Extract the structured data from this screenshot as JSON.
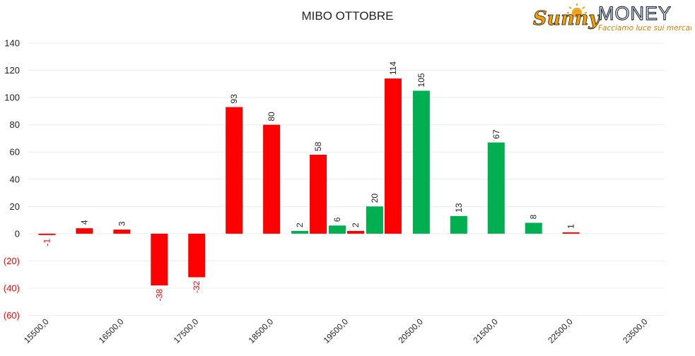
{
  "logo": {
    "brand_script": "Sunny",
    "brand_caps": "MONEY",
    "tagline": "Facciamo luce sui mercati"
  },
  "chart_data": {
    "type": "bar",
    "title": "MIBO OTTOBRE",
    "xlabel": "",
    "ylabel": "",
    "ylim": [
      -60,
      140
    ],
    "y_ticks": [
      {
        "value": 140,
        "label": "140"
      },
      {
        "value": 120,
        "label": "120"
      },
      {
        "value": 100,
        "label": "100"
      },
      {
        "value": 80,
        "label": "80"
      },
      {
        "value": 60,
        "label": "60"
      },
      {
        "value": 40,
        "label": "40"
      },
      {
        "value": 20,
        "label": "20"
      },
      {
        "value": 0,
        "label": "0"
      },
      {
        "value": -20,
        "label": "(20)"
      },
      {
        "value": -40,
        "label": "(40)"
      },
      {
        "value": -60,
        "label": "(60)"
      }
    ],
    "x_tick_labels": [
      "15500,0",
      "16500,0",
      "17500,0",
      "18500,0",
      "19500,0",
      "20500,0",
      "21500,0",
      "22500,0",
      "23500,0"
    ],
    "grid": true,
    "legend": "none",
    "colors": {
      "red": "#ff0000",
      "green": "#00b050",
      "negative_label": "#ff0000",
      "label": "#222222"
    },
    "series": [
      {
        "color": "red",
        "points": [
          {
            "x": 15500,
            "y": -1
          },
          {
            "x": 16000,
            "y": 4
          },
          {
            "x": 16500,
            "y": 3
          },
          {
            "x": 17000,
            "y": -38
          },
          {
            "x": 17500,
            "y": -32
          },
          {
            "x": 18000,
            "y": 93
          },
          {
            "x": 18500,
            "y": 80
          },
          {
            "x": 19000,
            "y": 58
          },
          {
            "x": 19500,
            "y": 2
          },
          {
            "x": 20000,
            "y": 114
          },
          {
            "x": 22500,
            "y": 1
          }
        ]
      },
      {
        "color": "green",
        "points": [
          {
            "x": 19000,
            "y": 2
          },
          {
            "x": 19500,
            "y": 6
          },
          {
            "x": 20000,
            "y": 20
          },
          {
            "x": 20500,
            "y": 105
          },
          {
            "x": 21000,
            "y": 13
          },
          {
            "x": 21500,
            "y": 67
          },
          {
            "x": 22000,
            "y": 8
          }
        ]
      }
    ]
  }
}
